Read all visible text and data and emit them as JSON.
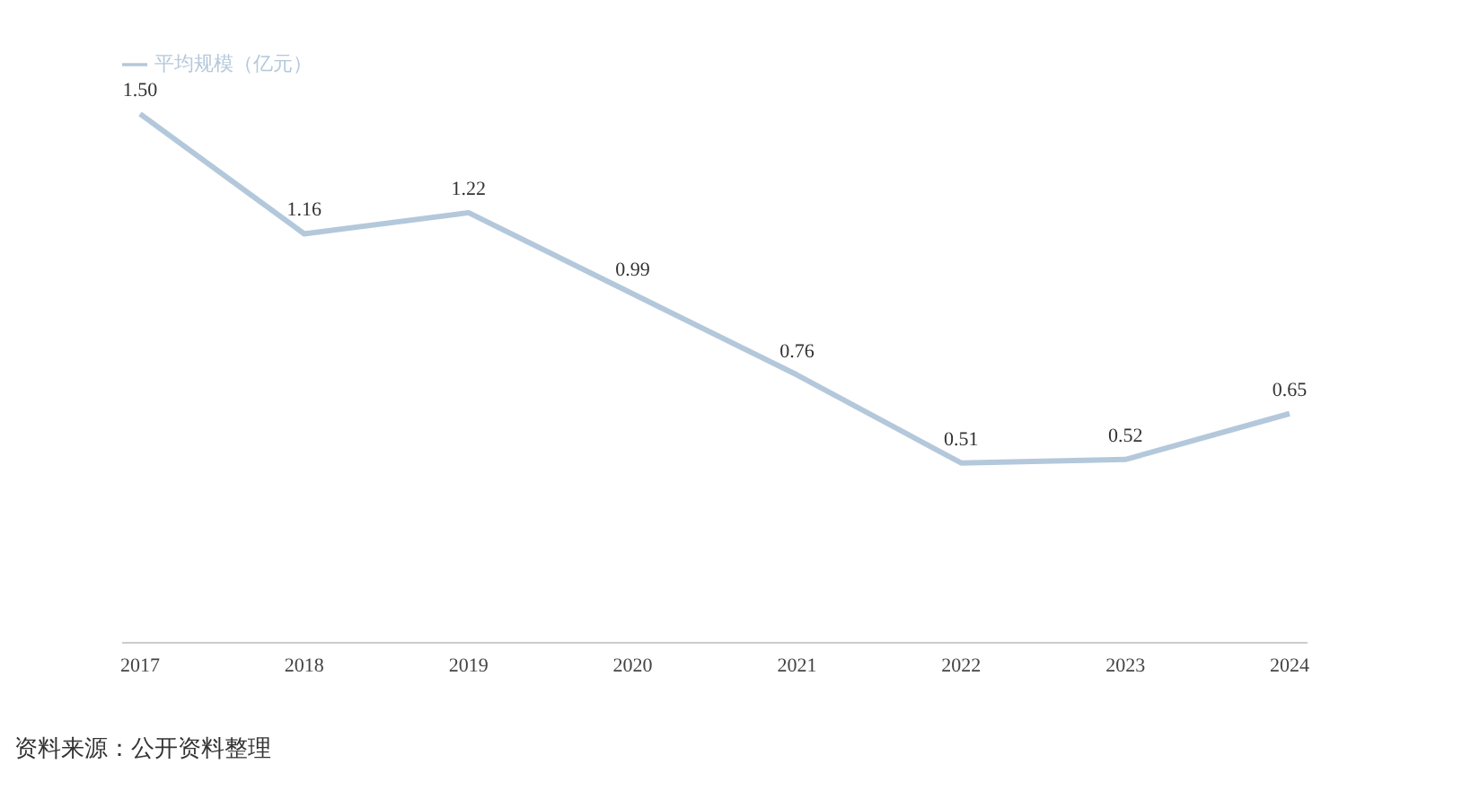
{
  "chart_data": {
    "type": "line",
    "categories": [
      "2017",
      "2018",
      "2019",
      "2020",
      "2021",
      "2022",
      "2023",
      "2024"
    ],
    "series": [
      {
        "name": "平均规模（亿元）",
        "color": "#b4c8db",
        "values": [
          1.5,
          1.16,
          1.22,
          0.99,
          0.76,
          0.51,
          0.52,
          0.65
        ],
        "value_labels": [
          "1.50",
          "1.16",
          "1.22",
          "0.99",
          "0.76",
          "0.51",
          "0.52",
          "0.65"
        ]
      }
    ],
    "legend": "top left",
    "marker": "none",
    "tick_labels": "x",
    "annotations": [
      "资料来源：公开资料整理"
    ]
  }
}
